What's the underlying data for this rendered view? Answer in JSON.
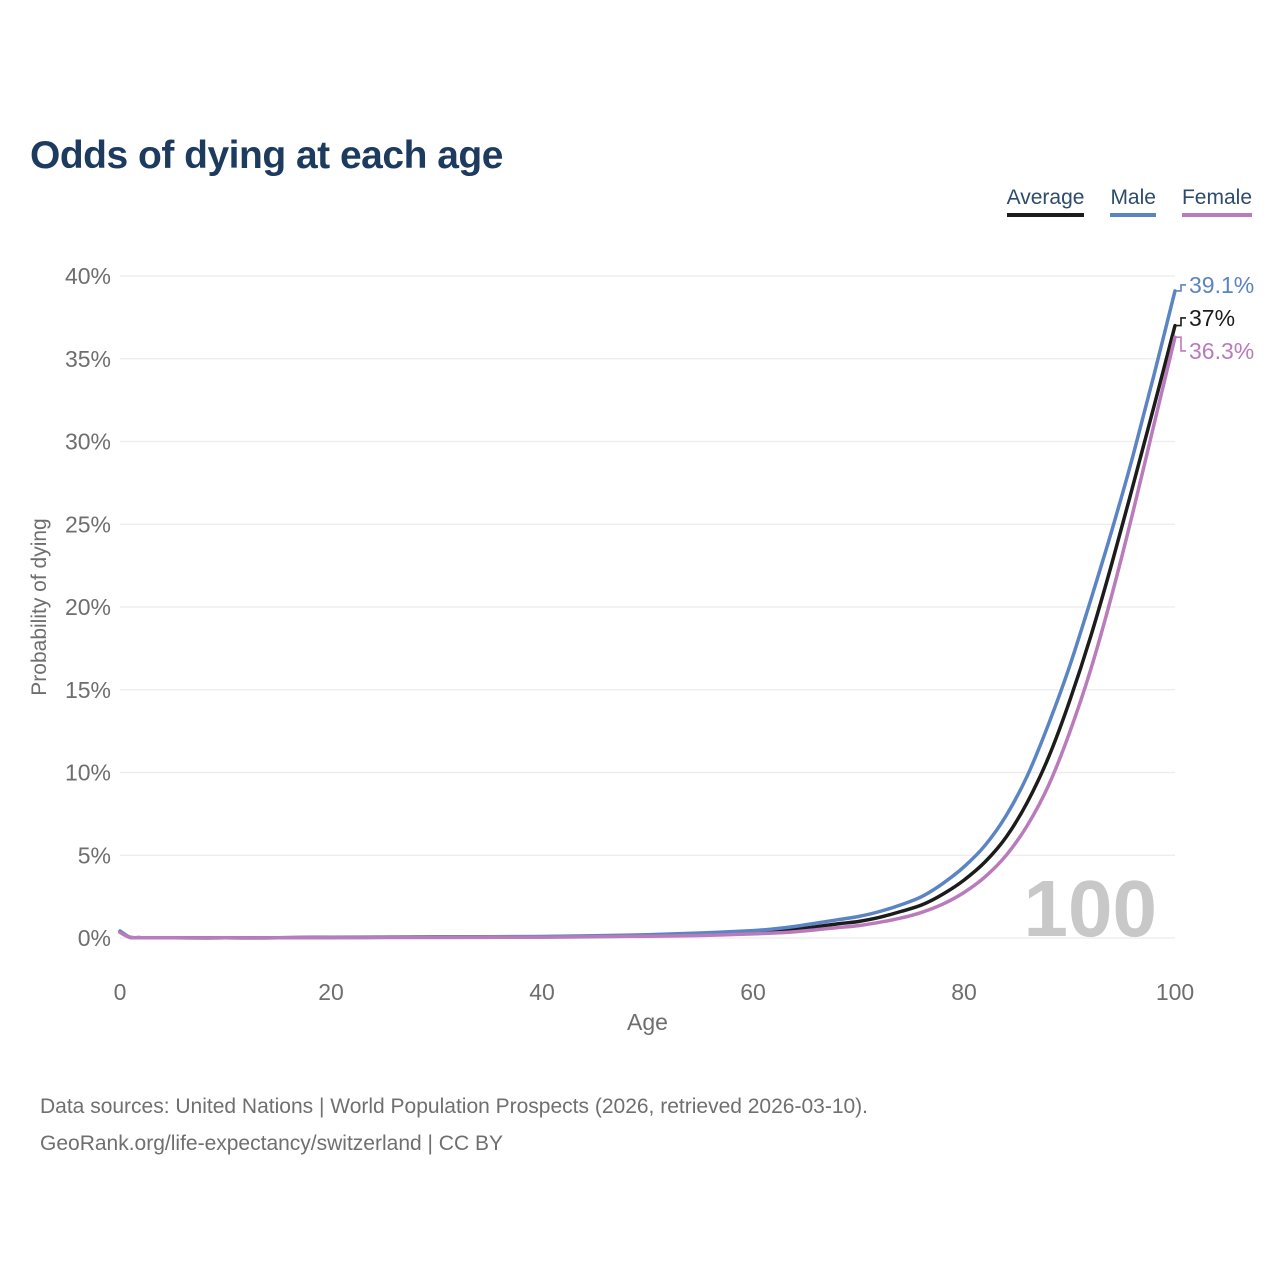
{
  "title": "Odds of dying at each age",
  "legend": {
    "items": [
      {
        "label": "Average",
        "color": "#1c1c1c"
      },
      {
        "label": "Male",
        "color": "#5b84c4"
      },
      {
        "label": "Female",
        "color": "#ba7bbc"
      }
    ]
  },
  "chart_data": {
    "type": "line",
    "title": "Odds of dying at each age",
    "xlabel": "Age",
    "ylabel": "Probability of dying",
    "xlim": [
      0,
      100
    ],
    "ylim": [
      0,
      40
    ],
    "xticks": [
      0,
      20,
      40,
      60,
      80,
      100
    ],
    "yticks": [
      0,
      5,
      10,
      15,
      20,
      25,
      30,
      35,
      40
    ],
    "ytick_suffix": "%",
    "grid": "horizontal",
    "legend_position": "top-right",
    "watermark": "100",
    "x": [
      0,
      1,
      2,
      5,
      10,
      15,
      20,
      25,
      30,
      35,
      40,
      45,
      50,
      55,
      60,
      62,
      64,
      66,
      68,
      70,
      72,
      74,
      76,
      78,
      80,
      82,
      84,
      86,
      88,
      90,
      92,
      94,
      96,
      98,
      100
    ],
    "series": [
      {
        "name": "Average",
        "color": "#1c1c1c",
        "end_label": "37%",
        "end_value": 37.0,
        "values": [
          0.38,
          0.03,
          0.02,
          0.01,
          0.01,
          0.01,
          0.04,
          0.04,
          0.05,
          0.06,
          0.07,
          0.1,
          0.15,
          0.22,
          0.35,
          0.42,
          0.53,
          0.68,
          0.85,
          1.0,
          1.25,
          1.6,
          2.0,
          2.65,
          3.5,
          4.6,
          6.1,
          8.2,
          10.9,
          14.3,
          18.2,
          22.6,
          27.3,
          32.1,
          37.0
        ]
      },
      {
        "name": "Male",
        "color": "#5b84c4",
        "end_label": "39.1%",
        "end_value": 39.1,
        "values": [
          0.42,
          0.03,
          0.02,
          0.01,
          0.01,
          0.02,
          0.05,
          0.06,
          0.07,
          0.08,
          0.09,
          0.13,
          0.2,
          0.3,
          0.45,
          0.55,
          0.7,
          0.9,
          1.1,
          1.3,
          1.6,
          2.0,
          2.5,
          3.3,
          4.3,
          5.6,
          7.4,
          9.8,
          12.9,
          16.4,
          20.4,
          24.6,
          29.1,
          34.0,
          39.1
        ]
      },
      {
        "name": "Female",
        "color": "#ba7bbc",
        "end_label": "36.3%",
        "end_value": 36.3,
        "values": [
          0.34,
          0.02,
          0.02,
          0.01,
          0.01,
          0.01,
          0.02,
          0.03,
          0.03,
          0.04,
          0.05,
          0.08,
          0.11,
          0.15,
          0.25,
          0.3,
          0.38,
          0.5,
          0.63,
          0.75,
          0.95,
          1.2,
          1.55,
          2.05,
          2.75,
          3.7,
          5.0,
          6.8,
          9.2,
          12.4,
          16.2,
          20.7,
          25.7,
          31.0,
          36.3
        ]
      }
    ]
  },
  "footer": {
    "line1": "Data sources: United Nations | World Population Prospects (2026, retrieved 2026-03-10).",
    "line2": "GeoRank.org/life-expectancy/switzerland | CC BY"
  },
  "colors": {
    "title": "#1d3a5f",
    "legend_text": "#2d4b6e",
    "tick_text": "#6e6e6e",
    "gridline": "#ececec",
    "watermark": "#c8c8c8",
    "footer_text": "#6f6f6f",
    "background": "#ffffff"
  }
}
